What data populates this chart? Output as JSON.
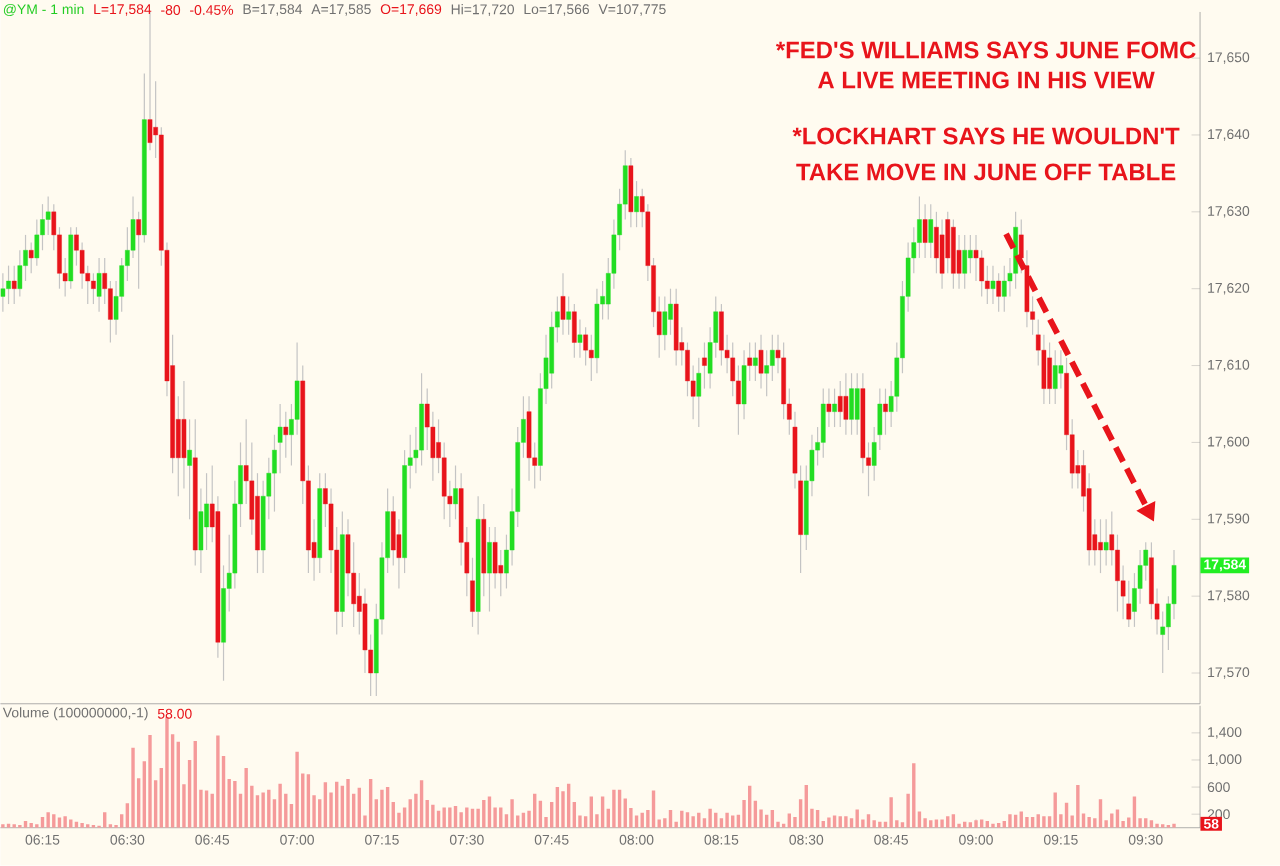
{
  "chart_data": [
    {
      "type": "candlestick",
      "title": "@YM - 1 min",
      "annotations": [
        "L=17,584",
        "-80",
        "-0.45%",
        "B=17,584",
        "A=17,585",
        "O=17,669",
        "Hi=17,720",
        "Lo=17,566",
        "V=107,775",
        "*FED'S WILLIAMS SAYS JUNE FOMC",
        "A LIVE MEETING IN HIS VIEW",
        "*LOCKHART SAYS HE WOULDN'T",
        "TAKE MOVE IN JUNE OFF TABLE",
        {
          "text": "17,584",
          "y": 17584
        }
      ],
      "x": [
        6.1333,
        6.15,
        6.1667,
        6.1833,
        6.2,
        6.2167,
        6.2333,
        6.25,
        6.2667,
        6.2833,
        6.3,
        6.3167,
        6.3333,
        6.35,
        6.3667,
        6.3833,
        6.4,
        6.4167,
        6.4333,
        6.45,
        6.4667,
        6.4833,
        6.5,
        6.5167,
        6.5333,
        6.55,
        6.5667,
        6.5833,
        6.6,
        6.6167,
        6.6333,
        6.65,
        6.6667,
        6.6833,
        6.7,
        6.7167,
        6.7333,
        6.75,
        6.7667,
        6.7833,
        6.8,
        6.8167,
        6.8333,
        6.85,
        6.8667,
        6.8833,
        6.9,
        6.9167,
        6.9333,
        6.95,
        6.9667,
        6.9833,
        7.0,
        7.0167,
        7.0333,
        7.05,
        7.0667,
        7.0833,
        7.1,
        7.1167,
        7.1333,
        7.15,
        7.1667,
        7.1833,
        7.2,
        7.2167,
        7.2333,
        7.25,
        7.2667,
        7.2833,
        7.3,
        7.3167,
        7.3333,
        7.35,
        7.3667,
        7.3833,
        7.4,
        7.4167,
        7.4333,
        7.45,
        7.4667,
        7.4833,
        7.5,
        7.5167,
        7.5333,
        7.55,
        7.5667,
        7.5833,
        7.6,
        7.6167,
        7.6333,
        7.65,
        7.6667,
        7.6833,
        7.7,
        7.7167,
        7.7333,
        7.75,
        7.7667,
        7.7833,
        7.8,
        7.8167,
        7.8333,
        7.85,
        7.8667,
        7.8833,
        7.9,
        7.9167,
        7.9333,
        7.95,
        7.9667,
        7.9833,
        8.0,
        8.0167,
        8.0333,
        8.05,
        8.0667,
        8.0833,
        8.1,
        8.1167,
        8.1333,
        8.15,
        8.1667,
        8.1833,
        8.2,
        8.2167,
        8.2333,
        8.25,
        8.2667,
        8.2833,
        8.3,
        8.3167,
        8.3333,
        8.35,
        8.3667,
        8.3833,
        8.4,
        8.4167,
        8.4333,
        8.45,
        8.4667,
        8.4833,
        8.5,
        8.5167,
        8.5333,
        8.55,
        8.5667,
        8.5833,
        8.6,
        8.6167,
        8.6333,
        8.65,
        8.6667,
        8.6833,
        8.7,
        8.7167,
        8.7333,
        8.75,
        8.7667,
        8.7833,
        8.8,
        8.8167,
        8.8333,
        8.85,
        8.8667,
        8.8833,
        8.9,
        8.9167,
        8.9333,
        8.95,
        8.9667,
        8.9833,
        9.0,
        9.0167,
        9.0333,
        9.05,
        9.0667,
        9.0833,
        9.1,
        9.1167,
        9.1333,
        9.15,
        9.1667,
        9.1833,
        9.2,
        9.2167,
        9.2333,
        9.25,
        9.2667,
        9.2833,
        9.3,
        9.3167,
        9.3333,
        9.35,
        9.3667,
        9.3833,
        9.4,
        9.4167,
        9.4333,
        9.45,
        9.4667,
        9.4833,
        9.5,
        9.5167,
        9.5333,
        9.55,
        9.5667,
        9.5833
      ],
      "ohlc": [
        [
          17619,
          17622,
          17617,
          17620
        ],
        [
          17620,
          17623,
          17618,
          17621
        ],
        [
          17621,
          17623,
          17618,
          17620
        ],
        [
          17620,
          17625,
          17619,
          17623
        ],
        [
          17623,
          17627,
          17621,
          17625
        ],
        [
          17625,
          17626,
          17622,
          17624
        ],
        [
          17624,
          17629,
          17623,
          17627
        ],
        [
          17627,
          17631,
          17625,
          17629
        ],
        [
          17629,
          17632,
          17627,
          17630
        ],
        [
          17630,
          17631,
          17625,
          17627
        ],
        [
          17627,
          17628,
          17620,
          17622
        ],
        [
          17622,
          17624,
          17619,
          17621
        ],
        [
          17621,
          17628,
          17620,
          17627
        ],
        [
          17627,
          17628,
          17623,
          17625
        ],
        [
          17625,
          17626,
          17620,
          17622
        ],
        [
          17622,
          17623,
          17618,
          17621
        ],
        [
          17621,
          17622,
          17618,
          17620
        ],
        [
          17619,
          17624,
          17617,
          17622
        ],
        [
          17622,
          17624,
          17618,
          17620
        ],
        [
          17620,
          17621,
          17613,
          17616
        ],
        [
          17616,
          17621,
          17614,
          17619
        ],
        [
          17619,
          17624,
          17617,
          17623
        ],
        [
          17623,
          17628,
          17621,
          17625
        ],
        [
          17625,
          17632,
          17624,
          17629
        ],
        [
          17629,
          17630,
          17620,
          17627
        ],
        [
          17627,
          17648,
          17626,
          17642
        ],
        [
          17642,
          17656,
          17638,
          17639
        ],
        [
          17641,
          17647,
          17637,
          17640
        ],
        [
          17640,
          17641,
          17623,
          17625
        ],
        [
          17625,
          17626,
          17606,
          17608
        ],
        [
          17610,
          17614,
          17596,
          17598
        ],
        [
          17603,
          17606,
          17593,
          17598
        ],
        [
          17603,
          17608,
          17594,
          17598
        ],
        [
          17597,
          17603,
          17590,
          17599
        ],
        [
          17598,
          17603,
          17584,
          17586
        ],
        [
          17586,
          17594,
          17583,
          17591
        ],
        [
          17589,
          17596,
          17586,
          17592
        ],
        [
          17592,
          17597,
          17587,
          17589
        ],
        [
          17591,
          17593,
          17572,
          17574
        ],
        [
          17574,
          17584,
          17569,
          17581
        ],
        [
          17581,
          17588,
          17578,
          17583
        ],
        [
          17583,
          17595,
          17581,
          17592
        ],
        [
          17592,
          17600,
          17589,
          17597
        ],
        [
          17597,
          17603,
          17592,
          17595
        ],
        [
          17595,
          17600,
          17588,
          17590
        ],
        [
          17593,
          17596,
          17583,
          17586
        ],
        [
          17586,
          17595,
          17583,
          17593
        ],
        [
          17593,
          17598,
          17590,
          17596
        ],
        [
          17596,
          17601,
          17591,
          17599
        ],
        [
          17600,
          17605,
          17596,
          17602
        ],
        [
          17602,
          17604,
          17598,
          17601
        ],
        [
          17601,
          17605,
          17597,
          17603
        ],
        [
          17603,
          17613,
          17601,
          17608
        ],
        [
          17608,
          17610,
          17592,
          17595
        ],
        [
          17595,
          17597,
          17583,
          17586
        ],
        [
          17587,
          17590,
          17582,
          17585
        ],
        [
          17585,
          17596,
          17583,
          17594
        ],
        [
          17594,
          17596,
          17589,
          17592
        ],
        [
          17592,
          17594,
          17583,
          17586
        ],
        [
          17586,
          17589,
          17575,
          17578
        ],
        [
          17578,
          17591,
          17576,
          17588
        ],
        [
          17588,
          17590,
          17580,
          17583
        ],
        [
          17583,
          17587,
          17576,
          17579
        ],
        [
          17580,
          17583,
          17575,
          17578
        ],
        [
          17579,
          17581,
          17570,
          17573
        ],
        [
          17573,
          17575,
          17567,
          17570
        ],
        [
          17570,
          17579,
          17567,
          17577
        ],
        [
          17577,
          17587,
          17575,
          17585
        ],
        [
          17585,
          17594,
          17583,
          17591
        ],
        [
          17591,
          17593,
          17584,
          17586
        ],
        [
          17588,
          17590,
          17581,
          17585
        ],
        [
          17585,
          17599,
          17583,
          17597
        ],
        [
          17597,
          17601,
          17594,
          17598
        ],
        [
          17598,
          17602,
          17596,
          17599
        ],
        [
          17599,
          17609,
          17597,
          17605
        ],
        [
          17605,
          17607,
          17599,
          17602
        ],
        [
          17602,
          17604,
          17595,
          17598
        ],
        [
          17600,
          17603,
          17596,
          17598
        ],
        [
          17598,
          17600,
          17590,
          17593
        ],
        [
          17593,
          17595,
          17589,
          17592
        ],
        [
          17592,
          17597,
          17590,
          17594
        ],
        [
          17594,
          17596,
          17584,
          17587
        ],
        [
          17587,
          17589,
          17580,
          17583
        ],
        [
          17582,
          17585,
          17576,
          17578
        ],
        [
          17578,
          17593,
          17575,
          17590
        ],
        [
          17590,
          17592,
          17580,
          17583
        ],
        [
          17583,
          17589,
          17578,
          17587
        ],
        [
          17587,
          17589,
          17581,
          17583
        ],
        [
          17584,
          17586,
          17580,
          17583
        ],
        [
          17583,
          17588,
          17581,
          17586
        ],
        [
          17586,
          17594,
          17584,
          17591
        ],
        [
          17591,
          17602,
          17589,
          17600
        ],
        [
          17600,
          17606,
          17598,
          17603
        ],
        [
          17604,
          17606,
          17595,
          17598
        ],
        [
          17598,
          17600,
          17594,
          17597
        ],
        [
          17597,
          17609,
          17595,
          17607
        ],
        [
          17607,
          17614,
          17605,
          17611
        ],
        [
          17609,
          17617,
          17607,
          17615
        ],
        [
          17615,
          17619,
          17613,
          17617
        ],
        [
          17619,
          17622,
          17614,
          17616
        ],
        [
          17616,
          17619,
          17614,
          17617
        ],
        [
          17617,
          17618,
          17611,
          17613
        ],
        [
          17613,
          17616,
          17611,
          17614
        ],
        [
          17614,
          17615,
          17610,
          17612
        ],
        [
          17612,
          17614,
          17608,
          17611
        ],
        [
          17611,
          17620,
          17609,
          17618
        ],
        [
          17618,
          17621,
          17616,
          17619
        ],
        [
          17618,
          17624,
          17616,
          17622
        ],
        [
          17622,
          17629,
          17620,
          17627
        ],
        [
          17627,
          17633,
          17625,
          17631
        ],
        [
          17631,
          17638,
          17629,
          17636
        ],
        [
          17636,
          17637,
          17628,
          17630
        ],
        [
          17630,
          17634,
          17628,
          17632
        ],
        [
          17632,
          17633,
          17628,
          17630
        ],
        [
          17630,
          17631,
          17621,
          17623
        ],
        [
          17623,
          17624,
          17615,
          17617
        ],
        [
          17617,
          17619,
          17611,
          17614
        ],
        [
          17614,
          17619,
          17612,
          17617
        ],
        [
          17616,
          17620,
          17614,
          17618
        ],
        [
          17618,
          17620,
          17610,
          17612
        ],
        [
          17613,
          17615,
          17610,
          17612
        ],
        [
          17612,
          17613,
          17606,
          17608
        ],
        [
          17608,
          17610,
          17603,
          17606
        ],
        [
          17606,
          17611,
          17602,
          17609
        ],
        [
          17611,
          17613,
          17607,
          17610
        ],
        [
          17609,
          17615,
          17607,
          17613
        ],
        [
          17613,
          17619,
          17611,
          17617
        ],
        [
          17617,
          17618,
          17610,
          17612
        ],
        [
          17612,
          17614,
          17609,
          17611
        ],
        [
          17611,
          17613,
          17606,
          17608
        ],
        [
          17608,
          17610,
          17601,
          17605
        ],
        [
          17605,
          17612,
          17603,
          17610
        ],
        [
          17611,
          17613,
          17608,
          17610
        ],
        [
          17610,
          17613,
          17608,
          17611
        ],
        [
          17612,
          17614,
          17607,
          17609
        ],
        [
          17609,
          17612,
          17606,
          17610
        ],
        [
          17610,
          17614,
          17608,
          17612
        ],
        [
          17612,
          17614,
          17609,
          17611
        ],
        [
          17611,
          17613,
          17603,
          17605
        ],
        [
          17605,
          17607,
          17601,
          17603
        ],
        [
          17602,
          17604,
          17594,
          17596
        ],
        [
          17595,
          17597,
          17583,
          17588
        ],
        [
          17588,
          17597,
          17586,
          17595
        ],
        [
          17595,
          17601,
          17593,
          17599
        ],
        [
          17599,
          17602,
          17597,
          17600
        ],
        [
          17600,
          17607,
          17598,
          17605
        ],
        [
          17605,
          17607,
          17602,
          17604
        ],
        [
          17604,
          17607,
          17602,
          17605
        ],
        [
          17606,
          17608,
          17602,
          17604
        ],
        [
          17606,
          17609,
          17601,
          17603
        ],
        [
          17603,
          17609,
          17601,
          17607
        ],
        [
          17603,
          17609,
          17601,
          17607
        ],
        [
          17607,
          17609,
          17596,
          17598
        ],
        [
          17598,
          17600,
          17593,
          17597
        ],
        [
          17597,
          17602,
          17595,
          17600
        ],
        [
          17601,
          17607,
          17599,
          17605
        ],
        [
          17605,
          17607,
          17601,
          17604
        ],
        [
          17604,
          17608,
          17602,
          17606
        ],
        [
          17606,
          17613,
          17604,
          17611
        ],
        [
          17611,
          17621,
          17609,
          17619
        ],
        [
          17619,
          17626,
          17617,
          17624
        ],
        [
          17624,
          17628,
          17622,
          17626
        ],
        [
          17626,
          17632,
          17624,
          17629
        ],
        [
          17629,
          17631,
          17624,
          17626
        ],
        [
          17626,
          17631,
          17624,
          17629
        ],
        [
          17628,
          17630,
          17622,
          17624
        ],
        [
          17627,
          17629,
          17620,
          17622
        ],
        [
          17629,
          17630,
          17622,
          17624
        ],
        [
          17628,
          17629,
          17620,
          17622
        ],
        [
          17625,
          17627,
          17620,
          17622
        ],
        [
          17622,
          17627,
          17620,
          17625
        ],
        [
          17624,
          17627,
          17622,
          17625
        ],
        [
          17625,
          17627,
          17621,
          17624
        ],
        [
          17624,
          17625,
          17619,
          17621
        ],
        [
          17621,
          17623,
          17618,
          17620
        ],
        [
          17620,
          17623,
          17618,
          17621
        ],
        [
          17621,
          17622,
          17617,
          17619
        ],
        [
          17619,
          17623,
          17617,
          17621
        ],
        [
          17621,
          17624,
          17619,
          17622
        ],
        [
          17622,
          17630,
          17620,
          17628
        ],
        [
          17627,
          17629,
          17622,
          17624
        ],
        [
          17623,
          17625,
          17615,
          17617
        ],
        [
          17617,
          17619,
          17614,
          17616
        ],
        [
          17614,
          17616,
          17610,
          17612
        ],
        [
          17612,
          17614,
          17605,
          17607
        ],
        [
          17611,
          17613,
          17605,
          17607
        ],
        [
          17607,
          17612,
          17605,
          17610
        ],
        [
          17609,
          17612,
          17607,
          17610
        ],
        [
          17609,
          17611,
          17599,
          17601
        ],
        [
          17601,
          17603,
          17594,
          17596
        ],
        [
          17597,
          17599,
          17594,
          17596
        ],
        [
          17597,
          17599,
          17591,
          17593
        ],
        [
          17594,
          17596,
          17584,
          17586
        ],
        [
          17588,
          17590,
          17584,
          17586
        ],
        [
          17587,
          17590,
          17583,
          17586
        ],
        [
          17586,
          17590,
          17584,
          17587
        ],
        [
          17588,
          17591,
          17584,
          17586
        ],
        [
          17586,
          17588,
          17578,
          17582
        ],
        [
          17582,
          17584,
          17577,
          17580
        ],
        [
          17579,
          17582,
          17576,
          17577
        ],
        [
          17578,
          17583,
          17576,
          17581
        ],
        [
          17581,
          17586,
          17579,
          17584
        ],
        [
          17584,
          17587,
          17582,
          17586
        ],
        [
          17585,
          17587,
          17577,
          17579
        ],
        [
          17579,
          17581,
          17575,
          17577
        ],
        [
          17575,
          17578,
          17570,
          17576
        ],
        [
          17576,
          17580,
          17573,
          17579
        ],
        [
          17579,
          17586,
          17577,
          17584
        ]
      ],
      "xlim": [
        6.126,
        9.66
      ],
      "ylim": [
        17566,
        17656
      ],
      "yticks": [
        {
          "value": 17570,
          "label": "17,570"
        },
        {
          "value": 17580,
          "label": "17,580"
        },
        {
          "value": 17590,
          "label": "17,590"
        },
        {
          "value": 17600,
          "label": "17,600"
        },
        {
          "value": 17610,
          "label": "17,610"
        },
        {
          "value": 17620,
          "label": "17,620"
        },
        {
          "value": 17630,
          "label": "17,630"
        },
        {
          "value": 17640,
          "label": "17,640"
        },
        {
          "value": 17650,
          "label": "17,650"
        }
      ],
      "tick_labels": "y"
    },
    {
      "type": "bar",
      "title": "Volume (100000000,-1)",
      "color": "#f59a9a",
      "annotations": [
        "58.00",
        {
          "text": "58",
          "y": 58
        }
      ],
      "x": [
        6.1333,
        6.15,
        6.1667,
        6.1833,
        6.2,
        6.2167,
        6.2333,
        6.25,
        6.2667,
        6.2833,
        6.3,
        6.3167,
        6.3333,
        6.35,
        6.3667,
        6.3833,
        6.4,
        6.4167,
        6.4333,
        6.45,
        6.4667,
        6.4833,
        6.5,
        6.5167,
        6.5333,
        6.55,
        6.5667,
        6.5833,
        6.6,
        6.6167,
        6.6333,
        6.65,
        6.6667,
        6.6833,
        6.7,
        6.7167,
        6.7333,
        6.75,
        6.7667,
        6.7833,
        6.8,
        6.8167,
        6.8333,
        6.85,
        6.8667,
        6.8833,
        6.9,
        6.9167,
        6.9333,
        6.95,
        6.9667,
        6.9833,
        7.0,
        7.0167,
        7.0333,
        7.05,
        7.0667,
        7.0833,
        7.1,
        7.1167,
        7.1333,
        7.15,
        7.1667,
        7.1833,
        7.2,
        7.2167,
        7.2333,
        7.25,
        7.2667,
        7.2833,
        7.3,
        7.3167,
        7.3333,
        7.35,
        7.3667,
        7.3833,
        7.4,
        7.4167,
        7.4333,
        7.45,
        7.4667,
        7.4833,
        7.5,
        7.5167,
        7.5333,
        7.55,
        7.5667,
        7.5833,
        7.6,
        7.6167,
        7.6333,
        7.65,
        7.6667,
        7.6833,
        7.7,
        7.7167,
        7.7333,
        7.75,
        7.7667,
        7.7833,
        7.8,
        7.8167,
        7.8333,
        7.85,
        7.8667,
        7.8833,
        7.9,
        7.9167,
        7.9333,
        7.95,
        7.9667,
        7.9833,
        8.0,
        8.0167,
        8.0333,
        8.05,
        8.0667,
        8.0833,
        8.1,
        8.1167,
        8.1333,
        8.15,
        8.1667,
        8.1833,
        8.2,
        8.2167,
        8.2333,
        8.25,
        8.2667,
        8.2833,
        8.3,
        8.3167,
        8.3333,
        8.35,
        8.3667,
        8.3833,
        8.4,
        8.4167,
        8.4333,
        8.45,
        8.4667,
        8.4833,
        8.5,
        8.5167,
        8.5333,
        8.55,
        8.5667,
        8.5833,
        8.6,
        8.6167,
        8.6333,
        8.65,
        8.6667,
        8.6833,
        8.7,
        8.7167,
        8.7333,
        8.75,
        8.7667,
        8.7833,
        8.8,
        8.8167,
        8.8333,
        8.85,
        8.8667,
        8.8833,
        8.9,
        8.9167,
        8.9333,
        8.95,
        8.9667,
        8.9833,
        9.0,
        9.0167,
        9.0333,
        9.05,
        9.0667,
        9.0833,
        9.1,
        9.1167,
        9.1333,
        9.15,
        9.1667,
        9.1833,
        9.2,
        9.2167,
        9.2333,
        9.25,
        9.2667,
        9.2833,
        9.3,
        9.3167,
        9.3333,
        9.35,
        9.3667,
        9.3833,
        9.4,
        9.4167,
        9.4333,
        9.45,
        9.4667,
        9.4833,
        9.5,
        9.5167,
        9.5333,
        9.55,
        9.5667,
        9.5833
      ],
      "values": [
        50,
        60,
        50,
        40,
        100,
        70,
        50,
        160,
        230,
        200,
        150,
        170,
        120,
        90,
        70,
        50,
        40,
        30,
        230,
        50,
        40,
        200,
        360,
        1180,
        730,
        980,
        1370,
        700,
        880,
        1630,
        1380,
        1270,
        640,
        1000,
        1280,
        560,
        550,
        500,
        1360,
        1060,
        720,
        690,
        500,
        880,
        620,
        480,
        520,
        560,
        420,
        650,
        500,
        350,
        1120,
        800,
        790,
        480,
        420,
        670,
        520,
        680,
        620,
        720,
        500,
        590,
        180,
        720,
        420,
        560,
        600,
        380,
        220,
        300,
        420,
        500,
        700,
        410,
        340,
        250,
        300,
        300,
        320,
        230,
        300,
        280,
        280,
        410,
        460,
        300,
        300,
        200,
        420,
        180,
        220,
        250,
        500,
        400,
        160,
        380,
        600,
        540,
        650,
        380,
        180,
        170,
        460,
        200,
        460,
        280,
        560,
        560,
        430,
        290,
        180,
        220,
        260,
        550,
        120,
        140,
        260,
        90,
        250,
        230,
        170,
        220,
        140,
        280,
        220,
        140,
        220,
        180,
        190,
        410,
        620,
        400,
        270,
        190,
        260,
        90,
        60,
        210,
        160,
        420,
        630,
        280,
        260,
        100,
        150,
        180,
        170,
        170,
        140,
        270,
        120,
        200,
        110,
        90,
        90,
        450,
        110,
        80,
        500,
        950,
        240,
        140,
        110,
        120,
        120,
        170,
        200,
        60,
        90,
        80,
        110,
        120,
        100,
        60,
        70,
        100,
        200,
        190,
        240,
        160,
        160,
        200,
        170,
        170,
        520,
        200,
        370,
        180,
        630,
        210,
        160,
        140,
        420,
        110,
        210,
        270,
        100,
        150,
        460,
        140,
        140,
        110,
        60,
        50,
        40,
        58
      ],
      "xlim": [
        6.126,
        9.66
      ],
      "ylim": [
        0,
        1800
      ],
      "xticks": [
        {
          "value": 6.25,
          "label": "06:15"
        },
        {
          "value": 6.5,
          "label": "06:30"
        },
        {
          "value": 6.75,
          "label": "06:45"
        },
        {
          "value": 7.0,
          "label": "07:00"
        },
        {
          "value": 7.25,
          "label": "07:15"
        },
        {
          "value": 7.5,
          "label": "07:30"
        },
        {
          "value": 7.75,
          "label": "07:45"
        },
        {
          "value": 8.0,
          "label": "08:00"
        },
        {
          "value": 8.25,
          "label": "08:15"
        },
        {
          "value": 8.5,
          "label": "08:30"
        },
        {
          "value": 8.75,
          "label": "08:45"
        },
        {
          "value": 9.0,
          "label": "09:00"
        },
        {
          "value": 9.25,
          "label": "09:15"
        },
        {
          "value": 9.5,
          "label": "09:30"
        }
      ],
      "yticks": [
        200,
        600,
        {
          "value": 1000,
          "label": "1,000"
        },
        {
          "value": 1400,
          "label": "1,400"
        }
      ]
    }
  ]
}
